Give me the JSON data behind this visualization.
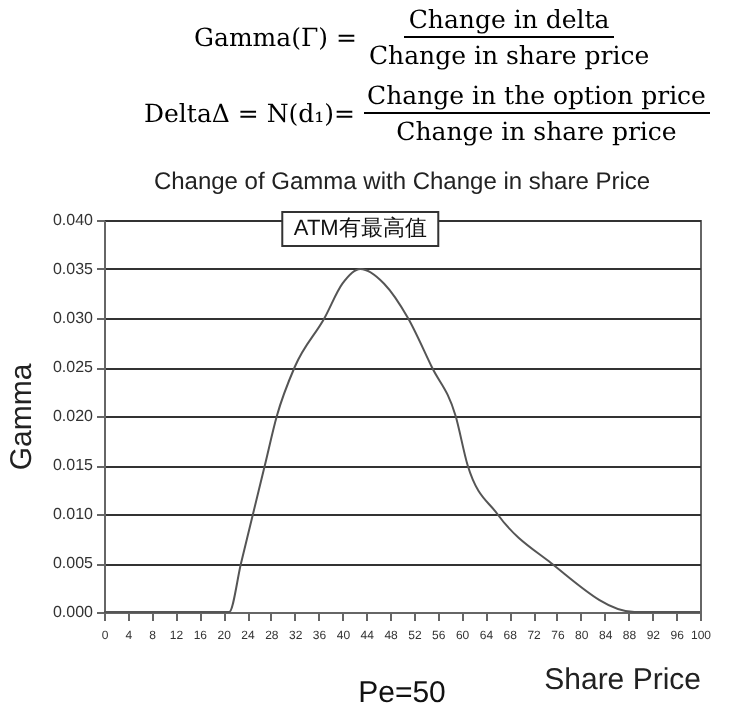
{
  "chart_data": {
    "type": "line",
    "title": "Change of Gamma with Change in share Price",
    "xlabel": "Share Price",
    "ylabel": "Gamma",
    "annotations": [
      "Gamma(Γ) =",
      "Change in delta",
      "Change in share price",
      "DeltaΔ = N(d₁)=",
      "Change in the option price",
      "Change in share price",
      {
        "text": "ATM有最高值",
        "x": 43,
        "y": 0.035
      },
      "Pe=50"
    ],
    "x": [
      0,
      21,
      23,
      25,
      27,
      29,
      32,
      37,
      40,
      43,
      47,
      51,
      55,
      59,
      61,
      66,
      75,
      89,
      100
    ],
    "series": [
      {
        "color": "#555555",
        "values": [
          0,
          0,
          0.005,
          0.01,
          0.015,
          0.02,
          0.025,
          0.03,
          0.0335,
          0.035,
          0.0335,
          0.03,
          0.025,
          0.02,
          0.015,
          0.01,
          0.005,
          0,
          0
        ]
      }
    ],
    "xlim": [
      0,
      100
    ],
    "xticks": [
      0,
      4,
      8,
      12,
      16,
      20,
      24,
      28,
      32,
      36,
      40,
      44,
      48,
      52,
      56,
      60,
      64,
      68,
      72,
      76,
      80,
      84,
      88,
      92,
      96,
      100
    ],
    "ylim": [
      0,
      0.04
    ],
    "yticks": [
      {
        "value": 0,
        "label": "0.000"
      },
      {
        "value": 0.005,
        "label": "0.005"
      },
      {
        "value": 0.01,
        "label": "0.010"
      },
      {
        "value": 0.015,
        "label": "0.015"
      },
      {
        "value": 0.02,
        "label": "0.020"
      },
      {
        "value": 0.025,
        "label": "0.025"
      },
      {
        "value": 0.03,
        "label": "0.030"
      },
      {
        "value": 0.035,
        "label": "0.035"
      },
      {
        "value": 0.04,
        "label": "0.040"
      }
    ],
    "grid": "y",
    "marker": "none",
    "line_style": "solid"
  }
}
